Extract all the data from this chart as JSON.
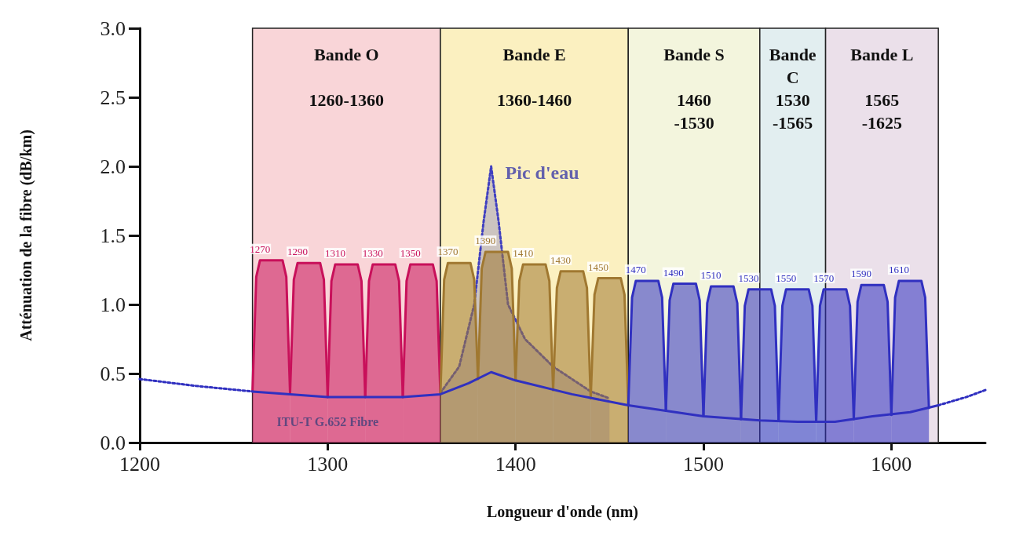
{
  "chart_data": {
    "type": "line",
    "xlabel": "Longueur d'onde (nm)",
    "ylabel": "Atténuation de la fibre (dB/km)",
    "xlim": [
      1200,
      1650
    ],
    "xticks": [
      1200,
      1300,
      1400,
      1500,
      1600
    ],
    "ylim": [
      0,
      3
    ],
    "yticks": [
      {
        "value": 0,
        "label": "0.0"
      },
      0.5,
      {
        "value": 1,
        "label": "1.0"
      },
      1.5,
      {
        "value": 2,
        "label": "2.0"
      },
      2.5,
      {
        "value": 3,
        "label": "3.0"
      }
    ],
    "grid": false,
    "legend": false,
    "bands": [
      {
        "axis": "x",
        "from": 1260,
        "to": 1360,
        "label": "Bande O\n\n1260-1360",
        "color": "#f9d5d8"
      },
      {
        "axis": "x",
        "from": 1360,
        "to": 1460,
        "label": "Bande E\n\n1360-1460",
        "color": "#fbf0c0"
      },
      {
        "axis": "x",
        "from": 1460,
        "to": 1530,
        "label": "Bande S\n\n1460\n-1530",
        "color": "#f3f5dd"
      },
      {
        "axis": "x",
        "from": 1530,
        "to": 1565,
        "label": "Bande\nC\n1530\n-1565",
        "color": "#e2eef0"
      },
      {
        "axis": "x",
        "from": 1565,
        "to": 1625,
        "label": "Bande L\n\n1565\n-1625",
        "color": "#ebe0ea"
      }
    ],
    "annotations": [
      {
        "text": "Pic d'eau",
        "x": 1387,
        "y": 2.0
      },
      {
        "text": "ITU-T G.652 Fibre",
        "x": 1300,
        "y": 0.33
      }
    ],
    "series": [
      {
        "type": "area",
        "line_style": "dotted",
        "color": "#4040c0",
        "x": [
          1360,
          1370,
          1378,
          1383,
          1387,
          1391,
          1396,
          1405,
          1420,
          1440,
          1450
        ],
        "values": [
          0.36,
          0.55,
          1.0,
          1.6,
          2.0,
          1.6,
          1.0,
          0.75,
          0.55,
          0.37,
          0.32
        ]
      },
      {
        "type": "area",
        "name": "1270",
        "color": "#c8105a",
        "x": [
          1260,
          1262,
          1264,
          1270,
          1276,
          1278,
          1280
        ],
        "values": [
          0.37,
          1.2,
          1.32,
          1.32,
          1.32,
          1.2,
          0.36
        ]
      },
      {
        "type": "area",
        "name": "1290",
        "color": "#c8105a",
        "x": [
          1280,
          1282,
          1284,
          1290,
          1296,
          1298,
          1300
        ],
        "values": [
          0.36,
          1.18,
          1.3,
          1.3,
          1.3,
          1.18,
          0.33
        ]
      },
      {
        "type": "area",
        "name": "1310",
        "color": "#c8105a",
        "x": [
          1300,
          1302,
          1304,
          1310,
          1316,
          1318,
          1320
        ],
        "values": [
          0.33,
          1.17,
          1.29,
          1.29,
          1.29,
          1.17,
          0.33
        ]
      },
      {
        "type": "area",
        "name": "1330",
        "color": "#c8105a",
        "x": [
          1320,
          1322,
          1324,
          1330,
          1336,
          1338,
          1340
        ],
        "values": [
          0.33,
          1.17,
          1.29,
          1.29,
          1.29,
          1.17,
          0.33
        ]
      },
      {
        "type": "area",
        "name": "1350",
        "color": "#c8105a",
        "x": [
          1340,
          1342,
          1344,
          1350,
          1356,
          1358,
          1360
        ],
        "values": [
          0.33,
          1.17,
          1.29,
          1.29,
          1.29,
          1.17,
          0.35
        ]
      },
      {
        "type": "area",
        "name": "1370",
        "color": "#a07830",
        "x": [
          1360,
          1362,
          1364,
          1370,
          1376,
          1378,
          1380
        ],
        "values": [
          0.35,
          1.18,
          1.3,
          1.3,
          1.3,
          1.18,
          0.46
        ]
      },
      {
        "type": "area",
        "name": "1390",
        "color": "#a07830",
        "x": [
          1380,
          1382,
          1384,
          1390,
          1396,
          1398,
          1400
        ],
        "values": [
          0.46,
          1.26,
          1.38,
          1.38,
          1.38,
          1.26,
          0.45
        ]
      },
      {
        "type": "area",
        "name": "1410",
        "color": "#a07830",
        "x": [
          1400,
          1402,
          1404,
          1410,
          1416,
          1418,
          1420
        ],
        "values": [
          0.45,
          1.17,
          1.29,
          1.29,
          1.29,
          1.17,
          0.38
        ]
      },
      {
        "type": "area",
        "name": "1430",
        "color": "#a07830",
        "x": [
          1420,
          1422,
          1424,
          1430,
          1436,
          1438,
          1440
        ],
        "values": [
          0.38,
          1.12,
          1.24,
          1.24,
          1.24,
          1.12,
          0.32
        ]
      },
      {
        "type": "area",
        "name": "1450",
        "color": "#a07830",
        "x": [
          1440,
          1442,
          1444,
          1450,
          1456,
          1458,
          1460
        ],
        "values": [
          0.32,
          1.07,
          1.19,
          1.19,
          1.19,
          1.07,
          0.27
        ]
      },
      {
        "type": "area",
        "name": "1470",
        "color": "#3030c0",
        "x": [
          1460,
          1462,
          1464,
          1470,
          1476,
          1478,
          1480
        ],
        "values": [
          0.27,
          1.05,
          1.17,
          1.17,
          1.17,
          1.05,
          0.23
        ]
      },
      {
        "type": "area",
        "name": "1490",
        "color": "#3030c0",
        "x": [
          1480,
          1482,
          1484,
          1490,
          1496,
          1498,
          1500
        ],
        "values": [
          0.23,
          1.03,
          1.15,
          1.15,
          1.15,
          1.03,
          0.19
        ]
      },
      {
        "type": "area",
        "name": "1510",
        "color": "#3030c0",
        "x": [
          1500,
          1502,
          1504,
          1510,
          1516,
          1518,
          1520
        ],
        "values": [
          0.19,
          1.01,
          1.13,
          1.13,
          1.13,
          1.01,
          0.17
        ]
      },
      {
        "type": "area",
        "name": "1530",
        "color": "#3030c0",
        "x": [
          1520,
          1522,
          1524,
          1530,
          1536,
          1538,
          1540
        ],
        "values": [
          0.17,
          0.99,
          1.11,
          1.11,
          1.11,
          0.99,
          0.16
        ]
      },
      {
        "type": "area",
        "name": "1550",
        "color": "#3030c0",
        "x": [
          1540,
          1542,
          1544,
          1550,
          1556,
          1558,
          1560
        ],
        "values": [
          0.16,
          0.99,
          1.11,
          1.11,
          1.11,
          0.99,
          0.15
        ]
      },
      {
        "type": "area",
        "name": "1570",
        "color": "#3030c0",
        "x": [
          1560,
          1562,
          1564,
          1570,
          1576,
          1578,
          1580
        ],
        "values": [
          0.15,
          0.99,
          1.11,
          1.11,
          1.11,
          0.99,
          0.17
        ]
      },
      {
        "type": "area",
        "name": "1590",
        "color": "#3030c0",
        "x": [
          1580,
          1582,
          1584,
          1590,
          1596,
          1598,
          1600
        ],
        "values": [
          0.17,
          1.02,
          1.14,
          1.14,
          1.14,
          1.02,
          0.2
        ]
      },
      {
        "type": "area",
        "name": "1610",
        "color": "#3030c0",
        "x": [
          1600,
          1602,
          1604,
          1610,
          1616,
          1618,
          1620
        ],
        "values": [
          0.2,
          1.05,
          1.17,
          1.17,
          1.17,
          1.05,
          0.25
        ]
      },
      {
        "line_style": "dotted",
        "color": "#3030c0",
        "x": [
          1200,
          1230,
          1260
        ],
        "values": [
          0.46,
          0.41,
          0.37
        ]
      },
      {
        "line_style": "solid",
        "color": "#3030c0",
        "x": [
          1260,
          1300,
          1340,
          1360,
          1375,
          1387,
          1400,
          1430,
          1460,
          1480,
          1500,
          1530,
          1550,
          1570,
          1590,
          1610,
          1625
        ],
        "values": [
          0.37,
          0.33,
          0.33,
          0.35,
          0.43,
          0.51,
          0.45,
          0.35,
          0.27,
          0.23,
          0.19,
          0.16,
          0.15,
          0.15,
          0.19,
          0.22,
          0.27
        ]
      },
      {
        "line_style": "dotted",
        "color": "#3030c0",
        "x": [
          1625,
          1640,
          1650
        ],
        "values": [
          0.27,
          0.33,
          0.38
        ]
      }
    ]
  }
}
